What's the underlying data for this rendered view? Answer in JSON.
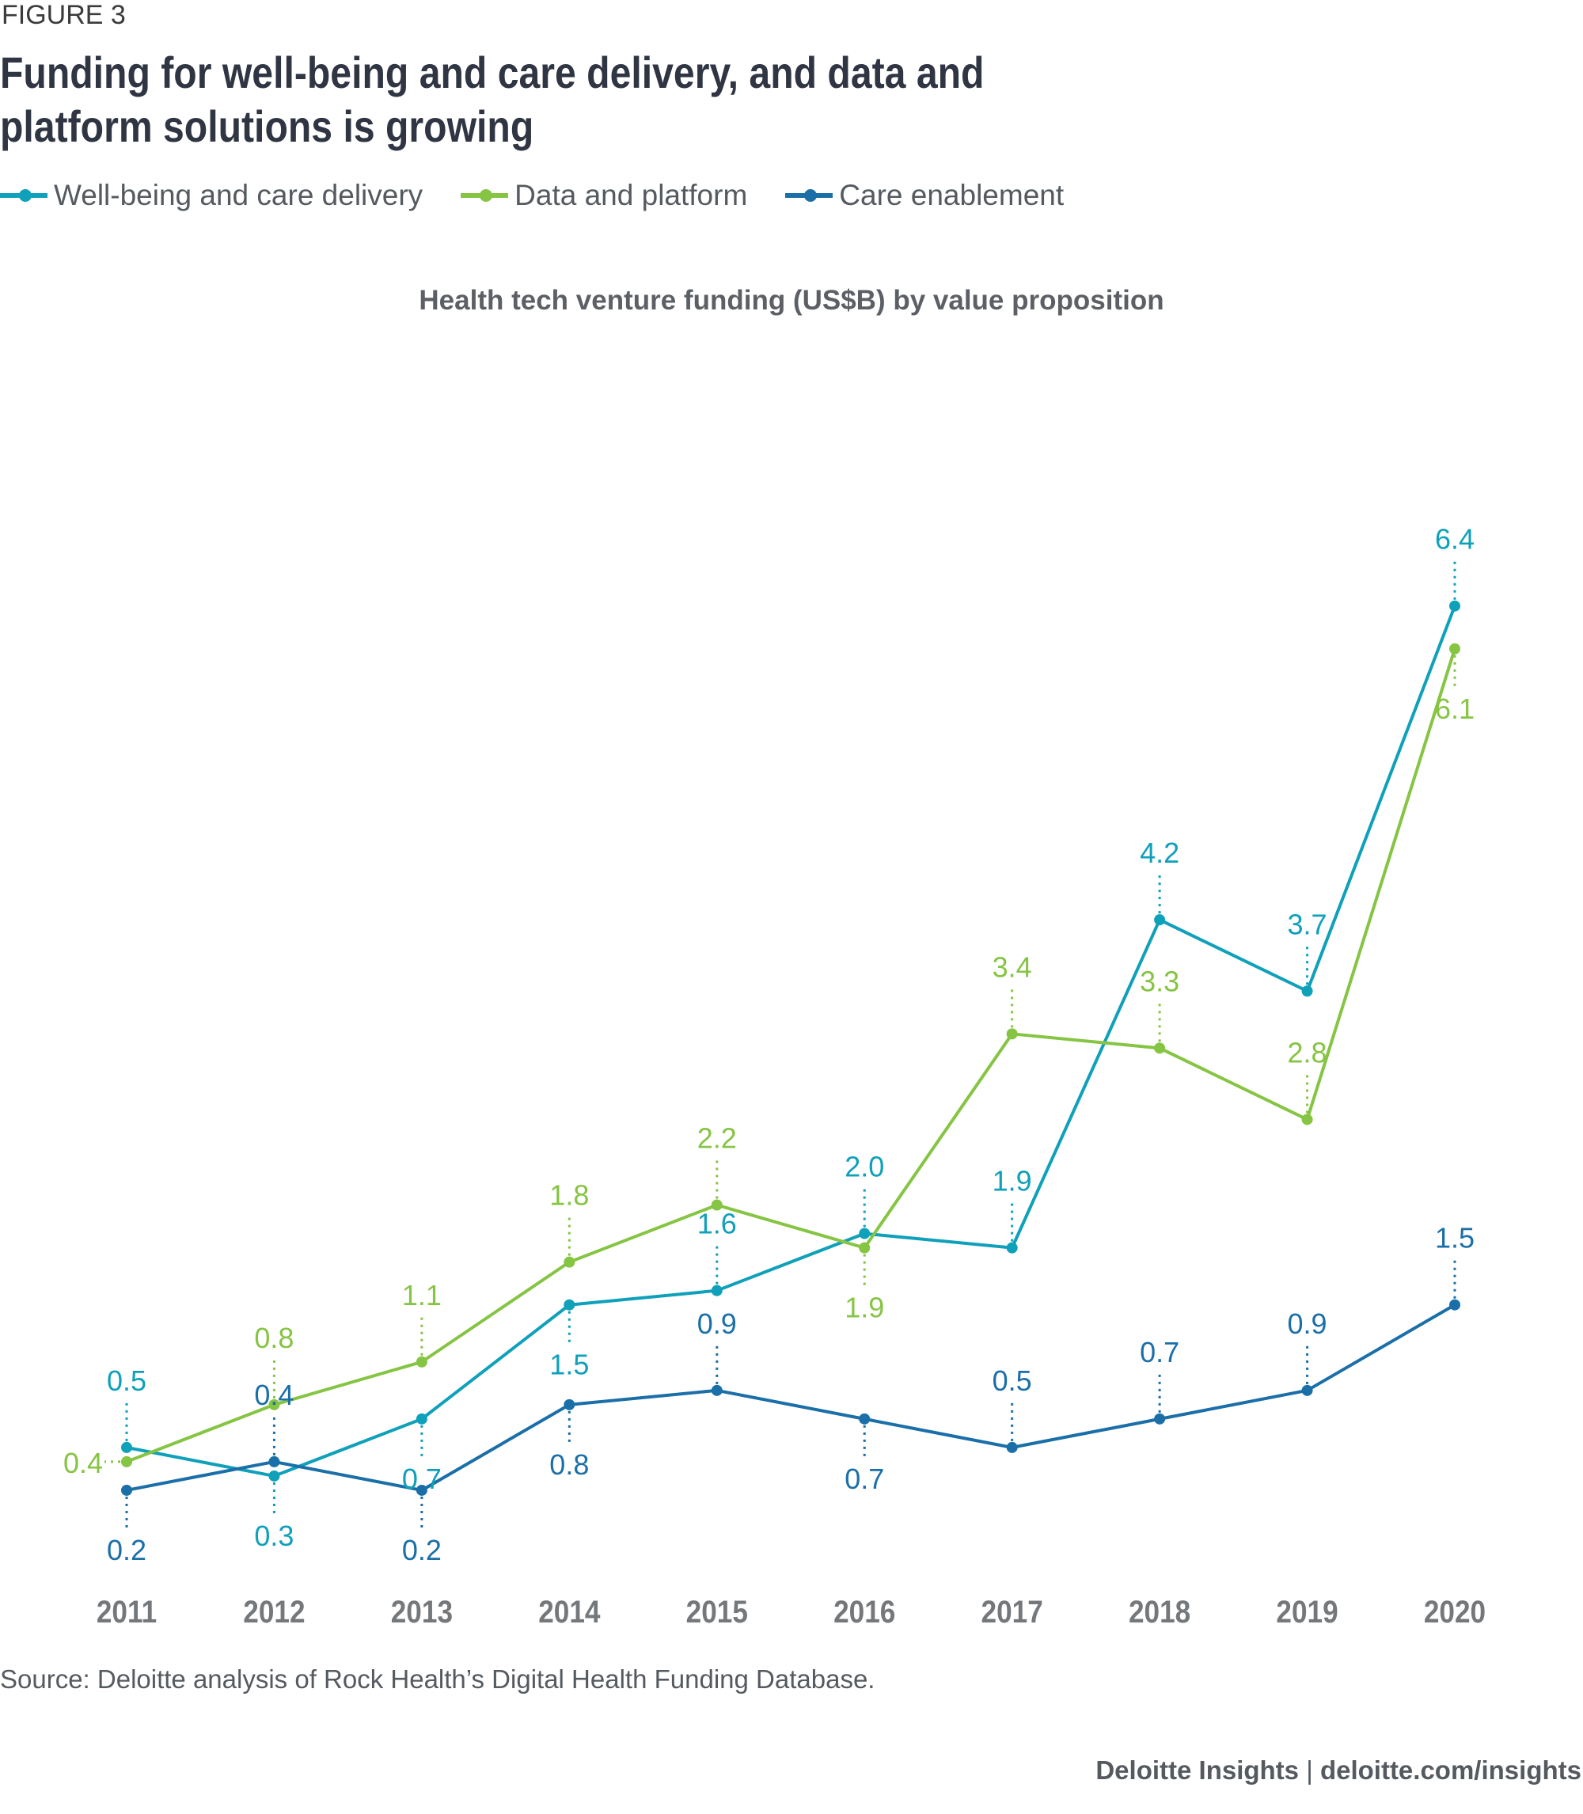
{
  "figure_label": "FIGURE 3",
  "title": "Funding for well-being and care delivery, and data and platform solutions is growing",
  "subtitle": "Health tech venture funding (US$B) by value proposition",
  "source": "Source: Deloitte analysis of Rock Health’s Digital Health Funding Database.",
  "footer": {
    "brand": "Deloitte Insights",
    "separator": "|",
    "url": "deloitte.com/insights"
  },
  "legend": [
    {
      "name": "Well-being and care delivery",
      "color": "#0fa0ba"
    },
    {
      "name": "Data and platform",
      "color": "#86c443"
    },
    {
      "name": "Care enablement",
      "color": "#1b6fa8"
    }
  ],
  "chart_data": {
    "type": "line",
    "title": "Health tech venture funding (US$B) by value proposition",
    "xlabel": "",
    "ylabel": "",
    "x": [
      "2011",
      "2012",
      "2013",
      "2014",
      "2015",
      "2016",
      "2017",
      "2018",
      "2019",
      "2020"
    ],
    "ylim": [
      0,
      6.5
    ],
    "grid": false,
    "legend_position": "top-left",
    "series": [
      {
        "name": "Well-being and care delivery",
        "color": "#0fa0ba",
        "values": [
          0.5,
          0.3,
          0.7,
          1.5,
          1.6,
          2.0,
          1.9,
          4.2,
          3.7,
          6.4
        ],
        "labels": [
          "0.5",
          "0.3",
          "0.7",
          "1.5",
          "1.6",
          "2.0",
          "1.9",
          "4.2",
          "3.7",
          "6.4"
        ],
        "label_side": [
          "above",
          "below",
          "below",
          "below",
          "above",
          "above",
          "above",
          "above",
          "above",
          "above"
        ]
      },
      {
        "name": "Data and platform",
        "color": "#86c443",
        "values": [
          0.4,
          0.8,
          1.1,
          1.8,
          2.2,
          1.9,
          3.4,
          3.3,
          2.8,
          6.1
        ],
        "labels": [
          "0.4",
          "0.8",
          "1.1",
          "1.8",
          "2.2",
          "1.9",
          "3.4",
          "3.3",
          "2.8",
          "6.1"
        ],
        "label_side": [
          "left",
          "above",
          "above",
          "above",
          "above",
          "below",
          "above",
          "above",
          "above",
          "below"
        ]
      },
      {
        "name": "Care enablement",
        "color": "#1b6fa8",
        "values": [
          0.2,
          0.4,
          0.2,
          0.8,
          0.9,
          0.7,
          0.5,
          0.7,
          0.9,
          1.5
        ],
        "labels": [
          "0.2",
          "0.4",
          "0.2",
          "0.8",
          "0.9",
          "0.7",
          "0.5",
          "0.7",
          "0.9",
          "1.5"
        ],
        "label_side": [
          "below",
          "above",
          "below",
          "below",
          "above",
          "below",
          "above",
          "above",
          "above",
          "above"
        ]
      }
    ]
  }
}
